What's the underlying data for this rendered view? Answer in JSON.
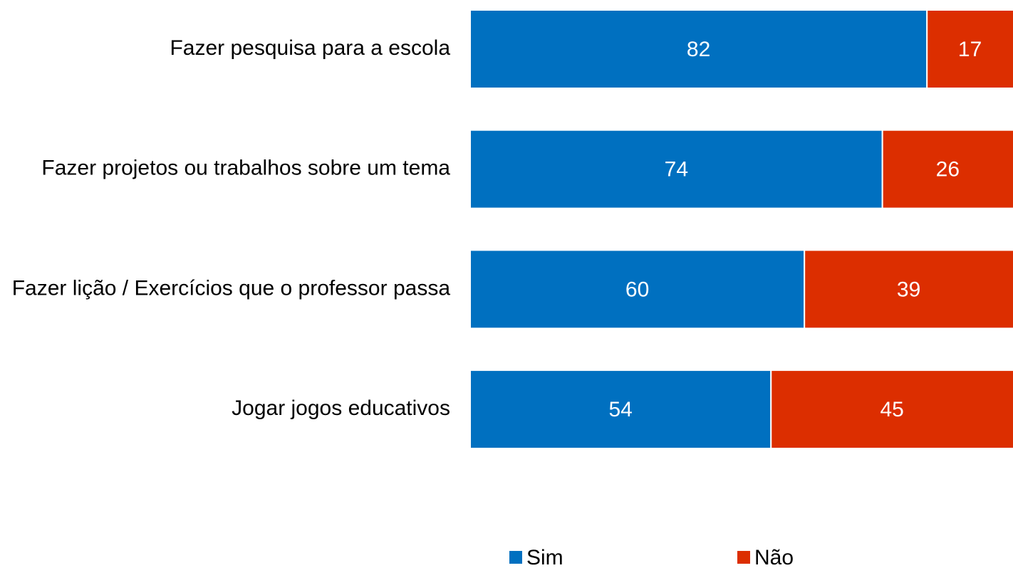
{
  "chart_data": {
    "type": "stacked_bar_horizontal",
    "categories": [
      "Fazer pesquisa para a escola",
      "Fazer projetos ou trabalhos sobre um tema",
      "Fazer lição / Exercícios que o professor passa",
      "Jogar jogos educativos"
    ],
    "series": [
      {
        "name": "Sim",
        "color": "#0070c0",
        "values": [
          82,
          74,
          60,
          54
        ]
      },
      {
        "name": "Não",
        "color": "#dc2e00",
        "values": [
          17,
          26,
          39,
          45
        ]
      }
    ],
    "xlim": [
      0,
      100
    ],
    "legend": "bottom"
  }
}
